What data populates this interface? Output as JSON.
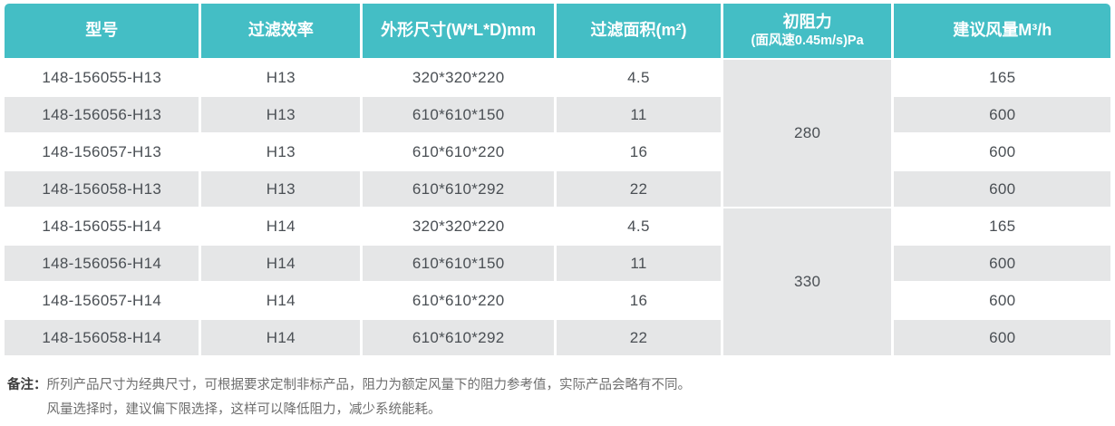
{
  "colors": {
    "header_teal": "#44BEC5",
    "row_stripe_gray": "#E5E6E7",
    "body_text": "#4a4f54",
    "note_text": "#6e6e6e"
  },
  "table": {
    "columns": {
      "model": "型号",
      "efficiency": "过滤效率",
      "dimensions": "外形尺寸(W*L*D)mm",
      "area": "过滤面积(m²)",
      "resistance_main": "初阻力",
      "resistance_sub": "(面风速0.45m/s)Pa",
      "airflow": "建议风量M³/h"
    },
    "rows": [
      {
        "model": "148-156055-H13",
        "efficiency": "H13",
        "dimensions": "320*320*220",
        "area": "4.5",
        "airflow": "165"
      },
      {
        "model": "148-156056-H13",
        "efficiency": "H13",
        "dimensions": "610*610*150",
        "area": "11",
        "airflow": "600"
      },
      {
        "model": "148-156057-H13",
        "efficiency": "H13",
        "dimensions": "610*610*220",
        "area": "16",
        "airflow": "600"
      },
      {
        "model": "148-156058-H13",
        "efficiency": "H13",
        "dimensions": "610*610*292",
        "area": "22",
        "airflow": "600"
      },
      {
        "model": "148-156055-H14",
        "efficiency": "H14",
        "dimensions": "320*320*220",
        "area": "4.5",
        "airflow": "165"
      },
      {
        "model": "148-156056-H14",
        "efficiency": "H14",
        "dimensions": "610*610*150",
        "area": "11",
        "airflow": "600"
      },
      {
        "model": "148-156057-H14",
        "efficiency": "H14",
        "dimensions": "610*610*220",
        "area": "16",
        "airflow": "600"
      },
      {
        "model": "148-156058-H14",
        "efficiency": "H14",
        "dimensions": "610*610*292",
        "area": "22",
        "airflow": "600"
      }
    ],
    "merged_resistance": [
      {
        "value": "280",
        "span_rows": "1-4"
      },
      {
        "value": "330",
        "span_rows": "5-8"
      }
    ]
  },
  "notes": {
    "label": "备注：",
    "lines": [
      "所列产品尺寸为经典尺寸，可根据要求定制非标产品，阻力为额定风量下的阻力参考值，实际产品会略有不同。",
      "风量选择时，建议偏下限选择，这样可以降低阻力，减少系统能耗。"
    ]
  }
}
